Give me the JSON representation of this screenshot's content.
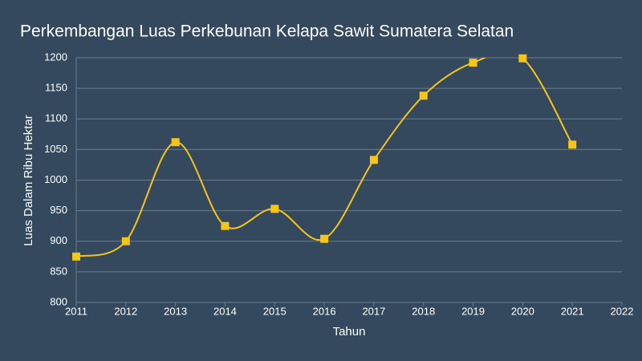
{
  "chart_data": {
    "type": "line",
    "title": "Perkembangan Luas Perkebunan Kelapa Sawit Sumatera Selatan",
    "x_label": "Tahun",
    "y_label": "Luas Dalam Ribu Hektar",
    "x": [
      2011,
      2012,
      2013,
      2014,
      2015,
      2016,
      2017,
      2018,
      2019,
      2020,
      2021
    ],
    "series": [
      {
        "name": "Luas",
        "color": "#f5c518",
        "values": [
          875,
          900,
          1062,
          925,
          953,
          904,
          1033,
          1138,
          1192,
          1199,
          1058
        ]
      }
    ],
    "xlim": [
      2011,
      2022
    ],
    "xticks": [
      2011,
      2012,
      2013,
      2014,
      2015,
      2016,
      2017,
      2018,
      2019,
      2020,
      2021,
      2022
    ],
    "ylim": [
      800,
      1200
    ],
    "yticks": [
      800,
      850,
      900,
      950,
      1000,
      1050,
      1100,
      1150,
      1200
    ],
    "grid": true,
    "smooth": true
  }
}
